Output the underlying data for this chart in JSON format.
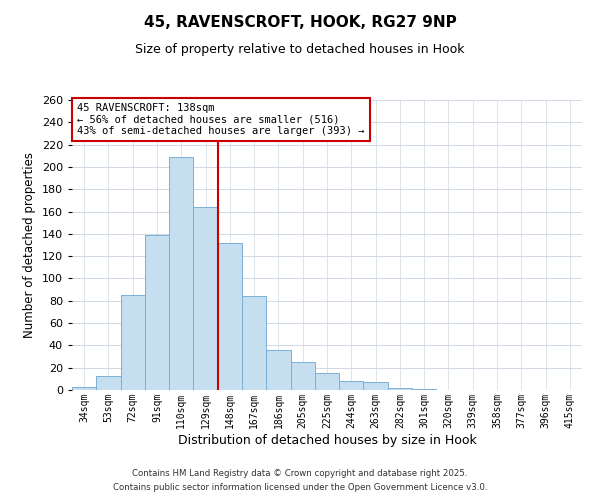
{
  "title": "45, RAVENSCROFT, HOOK, RG27 9NP",
  "subtitle": "Size of property relative to detached houses in Hook",
  "xlabel": "Distribution of detached houses by size in Hook",
  "ylabel": "Number of detached properties",
  "bar_labels": [
    "34sqm",
    "53sqm",
    "72sqm",
    "91sqm",
    "110sqm",
    "129sqm",
    "148sqm",
    "167sqm",
    "186sqm",
    "205sqm",
    "225sqm",
    "244sqm",
    "263sqm",
    "282sqm",
    "301sqm",
    "320sqm",
    "339sqm",
    "358sqm",
    "377sqm",
    "396sqm",
    "415sqm"
  ],
  "bar_heights": [
    3,
    13,
    85,
    139,
    209,
    164,
    132,
    84,
    36,
    25,
    15,
    8,
    7,
    2,
    1,
    0,
    0,
    0,
    0,
    0,
    0
  ],
  "bar_color": "#c5dff0",
  "bar_edgecolor": "#7ab0d4",
  "ylim": [
    0,
    260
  ],
  "yticks": [
    0,
    20,
    40,
    60,
    80,
    100,
    120,
    140,
    160,
    180,
    200,
    220,
    240,
    260
  ],
  "vline_x": 5.5,
  "vline_color": "#cc0000",
  "annotation_title": "45 RAVENSCROFT: 138sqm",
  "annotation_line1": "← 56% of detached houses are smaller (516)",
  "annotation_line2": "43% of semi-detached houses are larger (393) →",
  "footer_line1": "Contains HM Land Registry data © Crown copyright and database right 2025.",
  "footer_line2": "Contains public sector information licensed under the Open Government Licence v3.0.",
  "background_color": "#ffffff",
  "grid_color": "#d0d8e4"
}
